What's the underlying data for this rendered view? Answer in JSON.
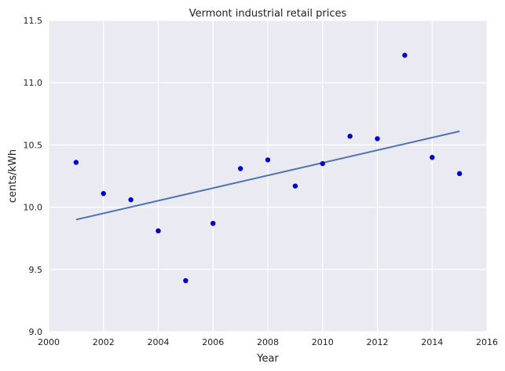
{
  "chart_data": {
    "type": "scatter",
    "title": "Vermont   industrial retail prices",
    "xlabel": "Year",
    "ylabel": "cents/kWh",
    "xlim": [
      2000,
      2016
    ],
    "ylim": [
      9.0,
      11.5
    ],
    "xticks": [
      2000,
      2002,
      2004,
      2006,
      2008,
      2010,
      2012,
      2014,
      2016
    ],
    "yticks": [
      9.0,
      9.5,
      10.0,
      10.5,
      11.0,
      11.5
    ],
    "ytick_labels": [
      "9.0",
      "9.5",
      "10.0",
      "10.5",
      "11.0",
      "11.5"
    ],
    "grid": true,
    "points": {
      "x": [
        2001,
        2002,
        2003,
        2004,
        2005,
        2006,
        2007,
        2008,
        2009,
        2010,
        2011,
        2012,
        2013,
        2014,
        2015
      ],
      "y": [
        10.36,
        10.11,
        10.06,
        9.81,
        9.41,
        9.87,
        10.31,
        10.38,
        10.17,
        10.35,
        10.57,
        10.55,
        11.22,
        10.4,
        10.27
      ]
    },
    "trendline": {
      "x": [
        2001,
        2015
      ],
      "y": [
        9.9,
        10.61
      ]
    },
    "colors": {
      "points": "#0000cc",
      "trendline": "#4c72b0",
      "background": "#eaeaf2",
      "grid": "#ffffff"
    }
  }
}
